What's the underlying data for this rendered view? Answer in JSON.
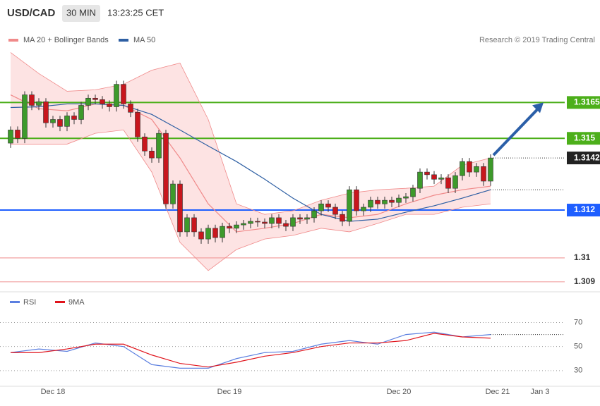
{
  "header": {
    "symbol": "USD/CAD",
    "interval": "30 MIN",
    "time": "13:23:25 CET"
  },
  "chart_data": [
    {
      "type": "candlestick",
      "annotation": "Research © 2019 Trading Central",
      "categories": [
        null,
        null,
        null,
        null,
        null,
        null,
        "Dec 18",
        null,
        null,
        null,
        null,
        null,
        null,
        null,
        null,
        null,
        null,
        null,
        null,
        null,
        null,
        null,
        null,
        null,
        null,
        null,
        null,
        null,
        null,
        null,
        null,
        "Dec 19",
        null,
        null,
        null,
        null,
        null,
        null,
        null,
        null,
        null,
        null,
        null,
        null,
        null,
        null,
        null,
        null,
        null,
        null,
        null,
        null,
        null,
        null,
        null,
        "Dec 20",
        null,
        null,
        null,
        null,
        null,
        null,
        null,
        null,
        null,
        null,
        null,
        null,
        null,
        "Dec 21",
        null,
        null,
        null,
        null,
        null,
        "Jan 3"
      ],
      "open": [
        1.3148,
        1.31535,
        1.315,
        1.31682,
        1.31638,
        1.31653,
        1.31565,
        1.31579,
        1.3155,
        1.31594,
        1.31579,
        1.31638,
        1.31668,
        1.31662,
        1.31644,
        1.31632,
        1.31726,
        1.31644,
        1.31609,
        1.31506,
        1.31447,
        1.31418,
        1.31521,
        1.31226,
        1.31309,
        1.31109,
        1.31168,
        1.31109,
        1.31079,
        1.31124,
        1.31085,
        1.31132,
        1.31124,
        1.31138,
        1.31144,
        1.31153,
        1.3115,
        1.31144,
        1.31168,
        1.31144,
        1.31132,
        1.31168,
        1.31162,
        1.31168,
        1.31197,
        1.31226,
        1.31212,
        1.31182,
        1.31153,
        1.31285,
        1.31197,
        1.31212,
        1.31241,
        1.31226,
        1.31241,
        1.31232,
        1.3125,
        1.31256,
        1.31291,
        1.31359,
        1.31348,
        1.31329,
        1.31335,
        1.31291,
        1.31344,
        1.31403,
        1.31359,
        1.31382,
        1.31321,
        null,
        null,
        null,
        null,
        null,
        null,
        null
      ],
      "high": [
        1.3155,
        1.3155,
        1.31697,
        1.31697,
        1.31668,
        1.31668,
        1.31594,
        1.31594,
        1.31609,
        1.31609,
        1.31653,
        1.31683,
        1.31683,
        1.31677,
        1.31659,
        1.31741,
        1.31741,
        1.31659,
        1.31624,
        1.31521,
        1.31462,
        1.31536,
        1.31536,
        1.31324,
        1.31324,
        1.31183,
        1.31183,
        1.31124,
        1.31139,
        1.31139,
        1.31147,
        1.31147,
        1.31153,
        1.31159,
        1.31168,
        1.31168,
        1.31165,
        1.31183,
        1.31183,
        1.31159,
        1.31183,
        1.31183,
        1.31183,
        1.31212,
        1.31241,
        1.31241,
        1.31227,
        1.31197,
        1.313,
        1.313,
        1.31227,
        1.31256,
        1.31256,
        1.31256,
        1.31256,
        1.31265,
        1.31271,
        1.31306,
        1.31374,
        1.31374,
        1.31363,
        1.3135,
        1.3135,
        1.31359,
        1.31418,
        1.31418,
        1.31397,
        1.31397,
        1.31433,
        null,
        null,
        null,
        null,
        null,
        null,
        null
      ],
      "low": [
        1.3146,
        1.3148,
        1.3148,
        1.31618,
        1.31618,
        1.31545,
        1.31545,
        1.3153,
        1.3153,
        1.31559,
        1.31559,
        1.31618,
        1.31642,
        1.31624,
        1.31612,
        1.31612,
        1.31624,
        1.31589,
        1.31486,
        1.31427,
        1.31398,
        1.31398,
        1.31206,
        1.31206,
        1.31089,
        1.31089,
        1.31089,
        1.31059,
        1.31059,
        1.31065,
        1.31065,
        1.31104,
        1.31104,
        1.31118,
        1.31124,
        1.3113,
        1.31124,
        1.31124,
        1.31124,
        1.31112,
        1.31112,
        1.31142,
        1.31142,
        1.31148,
        1.31177,
        1.31192,
        1.31162,
        1.31133,
        1.31133,
        1.31177,
        1.31177,
        1.31192,
        1.31206,
        1.31206,
        1.31212,
        1.31212,
        1.3123,
        1.31236,
        1.31271,
        1.31328,
        1.31309,
        1.31309,
        1.31271,
        1.31271,
        1.31324,
        1.31339,
        1.31339,
        1.31301,
        1.31301,
        null,
        null,
        null,
        null,
        null,
        null,
        null
      ],
      "close": [
        1.31535,
        1.315,
        1.31682,
        1.31638,
        1.31653,
        1.31565,
        1.31579,
        1.3155,
        1.31594,
        1.31579,
        1.31638,
        1.31668,
        1.31662,
        1.31644,
        1.31632,
        1.31726,
        1.31644,
        1.31609,
        1.31506,
        1.31447,
        1.31418,
        1.31521,
        1.31226,
        1.31309,
        1.31109,
        1.31168,
        1.31109,
        1.31079,
        1.31124,
        1.31085,
        1.31132,
        1.31124,
        1.31138,
        1.31144,
        1.31153,
        1.3115,
        1.31144,
        1.31168,
        1.31144,
        1.31132,
        1.31168,
        1.31162,
        1.31168,
        1.31197,
        1.31226,
        1.31212,
        1.31182,
        1.31153,
        1.31285,
        1.31197,
        1.31212,
        1.31241,
        1.31226,
        1.31241,
        1.31232,
        1.3125,
        1.31256,
        1.31291,
        1.31359,
        1.31348,
        1.31329,
        1.31335,
        1.31291,
        1.31344,
        1.31403,
        1.31359,
        1.31382,
        1.31321,
        1.31418,
        null,
        null,
        null,
        null,
        null,
        null,
        null
      ],
      "up_color": "#3d9a2b",
      "down_color": "#c8161d",
      "series": [
        {
          "name": "MA 20 + Bollinger Bands",
          "color": "#f08a8a",
          "band_color": "#fde3e3",
          "x": [
            0,
            4,
            8,
            12,
            16,
            20,
            24,
            28,
            32,
            36,
            40,
            44,
            48,
            52,
            56,
            60,
            64,
            68
          ],
          "values": [
            1.31682,
            1.31624,
            1.31615,
            1.31644,
            1.31638,
            1.31579,
            1.31418,
            1.31226,
            1.31109,
            1.31124,
            1.31144,
            1.31182,
            1.31168,
            1.31182,
            1.31226,
            1.31262,
            1.31285,
            1.313
          ],
          "upper": [
            1.31859,
            1.31771,
            1.31697,
            1.31703,
            1.31726,
            1.31785,
            1.31815,
            1.31579,
            1.31226,
            1.31182,
            1.31197,
            1.31241,
            1.31271,
            1.31285,
            1.31291,
            1.313,
            1.31388,
            1.31418
          ],
          "lower": [
            1.31476,
            1.31476,
            1.31476,
            1.31521,
            1.31535,
            1.31359,
            1.31065,
            1.30947,
            1.31035,
            1.31079,
            1.31094,
            1.31124,
            1.31109,
            1.31144,
            1.31182,
            1.31182,
            1.31212,
            1.31226
          ]
        },
        {
          "name": "MA 50",
          "color": "#2e5fa3",
          "x": [
            0,
            4,
            8,
            12,
            16,
            20,
            24,
            28,
            32,
            36,
            40,
            44,
            48,
            52,
            56,
            60,
            64,
            68
          ],
          "values": [
            1.31629,
            1.31632,
            1.31644,
            1.31644,
            1.31638,
            1.316,
            1.31535,
            1.31468,
            1.31403,
            1.31329,
            1.3125,
            1.31182,
            1.31153,
            1.31162,
            1.31191,
            1.31218,
            1.3125,
            1.31285
          ]
        }
      ],
      "levels": [
        {
          "value": 1.3165,
          "color": "#4caf1a",
          "tag": true
        },
        {
          "value": 1.315,
          "color": "#4caf1a",
          "tag": true
        },
        {
          "value": 1.312,
          "color": "#1e5eff",
          "tag": true
        },
        {
          "value": 1.31,
          "color": "#f2a0a0",
          "tag": false
        },
        {
          "value": 1.309,
          "color": "#f2a0a0",
          "tag": false
        }
      ],
      "last_price": {
        "value": 1.31418,
        "label": "1.3142"
      },
      "ylim": [
        1.3087,
        1.32055
      ]
    },
    {
      "type": "line",
      "series": [
        {
          "name": "RSI",
          "color": "#5b7fe0",
          "x": [
            0,
            4,
            8,
            12,
            16,
            20,
            24,
            28,
            32,
            36,
            40,
            44,
            48,
            52,
            56,
            60,
            64,
            68
          ],
          "values": [
            45,
            48,
            46,
            53,
            50,
            35,
            32,
            32,
            40,
            45,
            46,
            52,
            55,
            52,
            60,
            62,
            58,
            60
          ]
        },
        {
          "name": "9MA",
          "color": "#e0141c",
          "x": [
            0,
            4,
            8,
            12,
            16,
            20,
            24,
            28,
            32,
            36,
            40,
            44,
            48,
            52,
            56,
            60,
            64,
            68
          ],
          "values": [
            45,
            45,
            48,
            52,
            52,
            43,
            36,
            33,
            37,
            42,
            45,
            50,
            53,
            53,
            55,
            61,
            58,
            57
          ]
        }
      ],
      "ylim": [
        17,
        92
      ],
      "yticks": [
        70,
        50,
        30
      ],
      "grid": true
    }
  ]
}
